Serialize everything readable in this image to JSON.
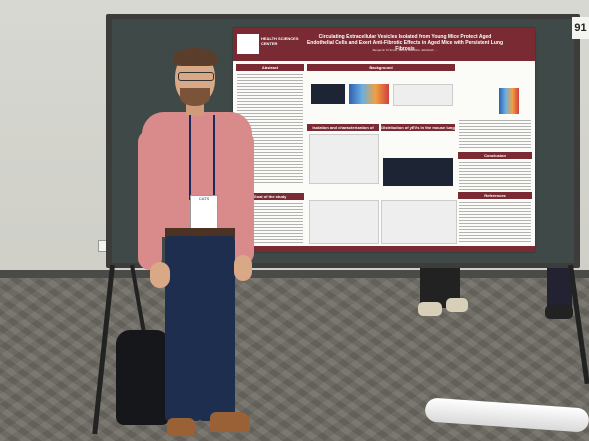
{
  "scene": {
    "sign_number": "91",
    "poster": {
      "institution": "HEALTH SCIENCES CENTER",
      "title": "Circulating Extracellular Vesicles Isolated from Young Mice Protect Aged Endothelial Cells and Exert Anti-Fibrotic Effects in Aged Mice with Persistent Lung Fibrosis",
      "authors": "Benjamin M Snow, Jeffrey Hazelton, Elizabeth ...",
      "sections": {
        "abstract": "Abstract",
        "background": "Background",
        "isolation": "Isolation and characterization of yEVs",
        "distribution": "Distribution of yEVs in the mouse lung",
        "goal": "Goal of the study",
        "conclusion": "Conclusion",
        "references": "References"
      }
    },
    "badge_text": "CATS"
  }
}
